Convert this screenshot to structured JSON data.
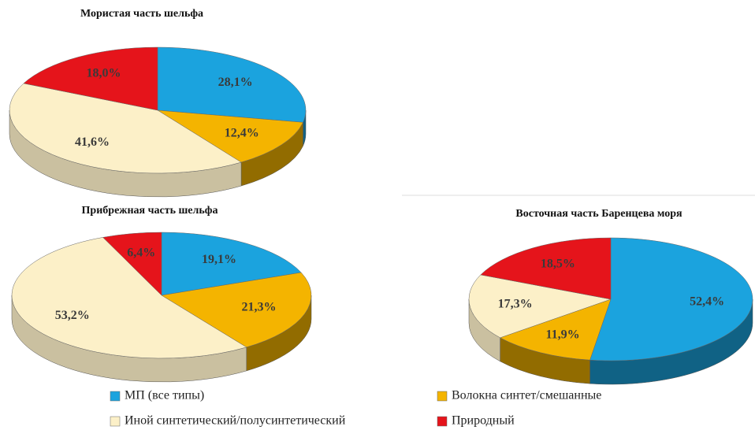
{
  "chart_data": [
    {
      "type": "pie",
      "title": "Мористая часть шельфа",
      "values": [
        28.1,
        12.4,
        41.6,
        18.0
      ],
      "value_labels": [
        "28,1%",
        "12,4%",
        "41,6%",
        "18,0%"
      ]
    },
    {
      "type": "pie",
      "title": "Прибрежная часть шельфа",
      "values": [
        19.1,
        21.3,
        53.2,
        6.4
      ],
      "value_labels": [
        "19,1%",
        "21,3%",
        "53,2%",
        "6,4%"
      ]
    },
    {
      "type": "pie",
      "title": "Восточная часть Баренцева моря",
      "values": [
        52.4,
        11.9,
        17.3,
        18.5
      ],
      "value_labels": [
        "52,4%",
        "11,9%",
        "17,3%",
        "18,5%"
      ]
    }
  ],
  "legend": {
    "items": [
      {
        "name": "МП (все типы)",
        "color": "#1ba3de"
      },
      {
        "name": "Волокна синтет/смешанные",
        "color": "#f4b400"
      },
      {
        "name": "Иной синтетический/полусинтетический",
        "color": "#fcf0c8"
      },
      {
        "name": "Природный",
        "color": "#e5141b"
      }
    ]
  }
}
